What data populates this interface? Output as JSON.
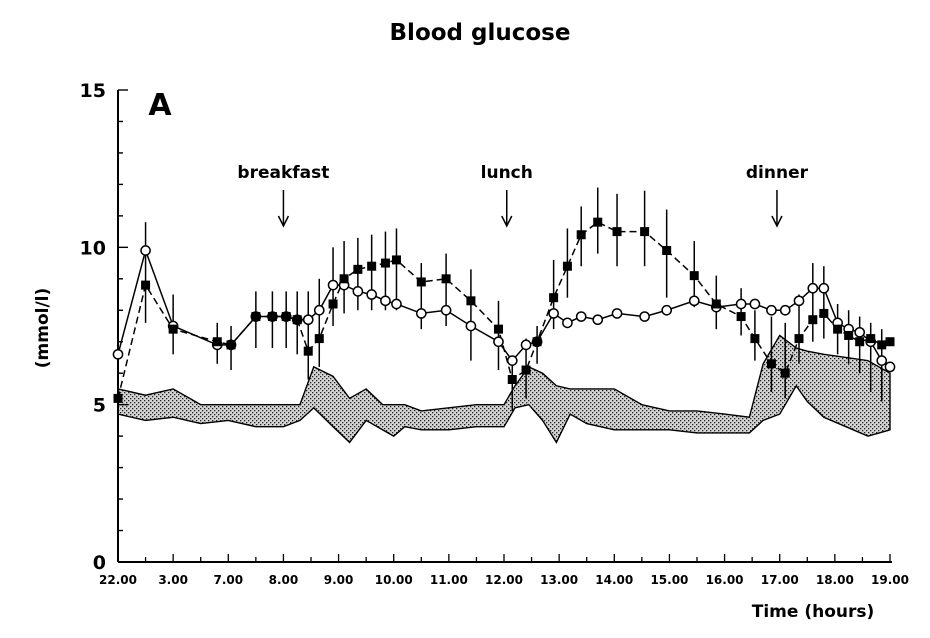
{
  "chart_data": {
    "type": "line",
    "title": "Blood glucose",
    "panel_label": "A",
    "xlabel": "Time (hours)",
    "ylabel": "(mmol/l)",
    "ylim": [
      0,
      15
    ],
    "y_ticks": [
      "0",
      "5",
      "10",
      "15"
    ],
    "x_tick_labels": [
      "22.00",
      "3.00",
      "7.00",
      "8.00",
      "9.00",
      "10.00",
      "11.00",
      "12.00",
      "13.00",
      "14.00",
      "15.00",
      "16.00",
      "17.00",
      "18.00",
      "19.00"
    ],
    "annotations": [
      {
        "label": "breakfast",
        "x_index": 3
      },
      {
        "label": "lunch",
        "x_index": 7.05
      },
      {
        "label": "dinner",
        "x_index": 11.95
      }
    ],
    "normal_range_band": {
      "x": [
        0,
        0.5,
        1.0,
        1.5,
        2.0,
        2.5,
        3.0,
        3.3,
        3.55,
        3.9,
        4.2,
        4.5,
        4.8,
        5.0,
        5.2,
        5.5,
        6.0,
        6.5,
        7.0,
        7.2,
        7.45,
        7.7,
        7.95,
        8.2,
        8.5,
        9.0,
        9.5,
        10.0,
        10.5,
        11.0,
        11.45,
        11.7,
        12.0,
        12.3,
        12.5,
        12.8,
        13.2,
        13.6,
        14.0
      ],
      "upper": [
        5.5,
        5.3,
        5.5,
        5.0,
        5.0,
        5.0,
        5.0,
        5.0,
        6.2,
        5.9,
        5.2,
        5.5,
        5.0,
        5.0,
        5.0,
        4.8,
        4.9,
        5.0,
        5.0,
        5.6,
        6.2,
        6.0,
        5.6,
        5.5,
        5.5,
        5.5,
        5.0,
        4.8,
        4.8,
        4.7,
        4.6,
        6.3,
        7.2,
        6.8,
        6.7,
        6.6,
        6.5,
        6.4,
        6.0
      ],
      "lower": [
        4.7,
        4.5,
        4.6,
        4.4,
        4.5,
        4.3,
        4.3,
        4.5,
        4.9,
        4.3,
        3.8,
        4.5,
        4.2,
        4.0,
        4.3,
        4.2,
        4.2,
        4.3,
        4.3,
        4.9,
        5.0,
        4.5,
        3.8,
        4.7,
        4.4,
        4.2,
        4.2,
        4.2,
        4.1,
        4.1,
        4.1,
        4.5,
        4.7,
        5.6,
        5.1,
        4.6,
        4.3,
        4.0,
        4.2
      ]
    },
    "series": [
      {
        "style": "filled squares, dashed line",
        "x": [
          0,
          0.5,
          1.0,
          1.8,
          2.05,
          2.5,
          2.8,
          3.05,
          3.25,
          3.45,
          3.65,
          3.9,
          4.1,
          4.35,
          4.6,
          4.85,
          5.05,
          5.5,
          5.95,
          6.4,
          6.9,
          7.15,
          7.4,
          7.6,
          7.9,
          8.15,
          8.4,
          8.7,
          9.05,
          9.55,
          9.95,
          10.45,
          10.85,
          11.3,
          11.55,
          11.85,
          12.1,
          12.35,
          12.6,
          12.8,
          13.05,
          13.25,
          13.45,
          13.65,
          13.85,
          14.0
        ],
        "values": [
          5.2,
          8.8,
          7.4,
          7.0,
          6.9,
          7.8,
          7.8,
          7.8,
          7.7,
          6.7,
          7.1,
          8.2,
          9.0,
          9.3,
          9.4,
          9.5,
          9.6,
          8.9,
          9.0,
          8.3,
          7.4,
          5.8,
          6.1,
          7.0,
          8.4,
          9.4,
          10.4,
          10.8,
          10.5,
          10.5,
          9.9,
          9.1,
          8.2,
          7.8,
          7.1,
          6.3,
          6.0,
          7.1,
          7.7,
          7.9,
          7.4,
          7.2,
          7.0,
          7.1,
          6.9,
          7.0
        ]
      },
      {
        "style": "open circles, solid line",
        "x": [
          0,
          0.5,
          1.0,
          1.8,
          2.05,
          2.5,
          2.8,
          3.05,
          3.25,
          3.45,
          3.65,
          3.9,
          4.1,
          4.35,
          4.6,
          4.85,
          5.05,
          5.5,
          5.95,
          6.4,
          6.9,
          7.15,
          7.4,
          7.6,
          7.9,
          8.15,
          8.4,
          8.7,
          9.05,
          9.55,
          9.95,
          10.45,
          10.85,
          11.3,
          11.55,
          11.85,
          12.1,
          12.35,
          12.6,
          12.8,
          13.05,
          13.25,
          13.45,
          13.65,
          13.85,
          14.0
        ],
        "values": [
          6.6,
          9.9,
          7.5,
          6.9,
          6.9,
          7.8,
          7.8,
          7.8,
          7.7,
          7.7,
          8.0,
          8.8,
          8.8,
          8.6,
          8.5,
          8.3,
          8.2,
          7.9,
          8.0,
          7.5,
          7.0,
          6.4,
          6.9,
          7.0,
          7.9,
          7.6,
          7.8,
          7.7,
          7.9,
          7.8,
          8.0,
          8.3,
          8.1,
          8.2,
          8.2,
          8.0,
          8.0,
          8.3,
          8.7,
          8.7,
          7.6,
          7.4,
          7.3,
          7.0,
          6.4,
          6.2
        ]
      }
    ],
    "error_bars": {
      "x": [
        0.5,
        1.0,
        1.8,
        2.05,
        2.5,
        2.8,
        3.05,
        3.25,
        3.45,
        3.65,
        3.9,
        4.1,
        4.35,
        4.6,
        4.85,
        5.05,
        5.5,
        5.95,
        6.4,
        6.9,
        7.15,
        7.4,
        7.6,
        7.9,
        8.15,
        8.4,
        8.7,
        9.05,
        9.55,
        9.95,
        10.45,
        10.85,
        11.3,
        11.55,
        11.85,
        12.1,
        12.35,
        12.6,
        12.8,
        13.05,
        13.25,
        13.45,
        13.65,
        13.85
      ],
      "top": [
        10.8,
        8.5,
        7.6,
        7.5,
        8.6,
        8.6,
        8.6,
        8.6,
        8.6,
        9.0,
        10.0,
        10.2,
        10.3,
        10.4,
        10.5,
        10.6,
        9.5,
        9.8,
        9.3,
        8.3,
        6.5,
        7.1,
        7.5,
        9.6,
        10.6,
        11.3,
        11.9,
        11.7,
        11.8,
        11.2,
        10.2,
        9.1,
        8.7,
        8.0,
        7.8,
        7.6,
        8.5,
        9.5,
        9.4,
        8.2,
        8.0,
        7.8,
        7.6,
        7.4
      ],
      "bottom": [
        7.6,
        6.6,
        6.3,
        6.1,
        6.8,
        6.8,
        6.8,
        6.6,
        5.8,
        6.2,
        7.5,
        7.9,
        8.0,
        8.0,
        8.0,
        8.0,
        7.4,
        7.5,
        6.4,
        6.1,
        4.8,
        5.2,
        6.3,
        7.4,
        8.4,
        9.4,
        9.8,
        9.4,
        9.4,
        8.4,
        8.1,
        7.4,
        7.2,
        6.4,
        5.4,
        5.2,
        6.3,
        7.0,
        7.1,
        6.6,
        6.3,
        6.0,
        5.4,
        5.1
      ]
    }
  }
}
